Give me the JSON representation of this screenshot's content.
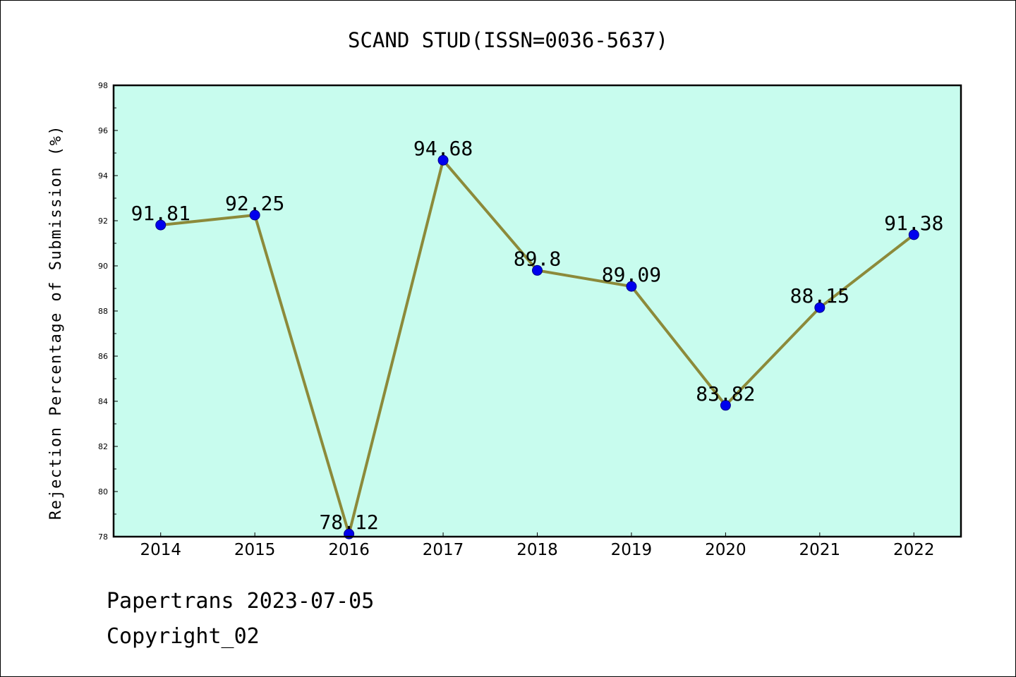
{
  "chart_data": {
    "type": "line",
    "title": "SCAND STUD(ISSN=0036-5637)",
    "xlabel": "",
    "ylabel": "Rejection Percentage of Submission (%)",
    "categories": [
      "2014",
      "2015",
      "2016",
      "2017",
      "2018",
      "2019",
      "2020",
      "2021",
      "2022"
    ],
    "series": [
      {
        "values": [
          91.81,
          92.25,
          78.12,
          94.68,
          89.8,
          89.09,
          83.82,
          88.15,
          91.38
        ],
        "labels": [
          "91.81",
          "92.25",
          "78.12",
          "94.68",
          "89.8",
          "89.09",
          "83.82",
          "88.15",
          "91.38"
        ]
      }
    ],
    "ylim": [
      78,
      98
    ],
    "yticks": [
      "78",
      "80",
      "82",
      "84",
      "86",
      "88",
      "90",
      "92",
      "94",
      "96",
      "98"
    ],
    "grid": false,
    "colors": {
      "plot_background": "#c8fcee",
      "line": "#8c8a3a",
      "marker": "#0000ee",
      "axes": "#000000"
    }
  },
  "footer": {
    "line1": "Papertrans 2023-07-05",
    "line2": "Copyright_02"
  }
}
